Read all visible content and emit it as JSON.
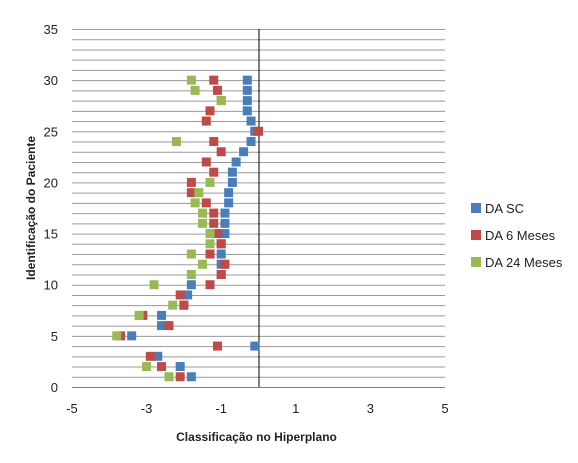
{
  "chart_data": {
    "type": "scatter",
    "xlabel": "Classificação no Hiperplano",
    "ylabel": "Identificação do Paciente",
    "xlim": [
      -5,
      5
    ],
    "ylim": [
      0,
      35
    ],
    "xticks": [
      "-5",
      "-3",
      "-1",
      "1",
      "3",
      "5"
    ],
    "yticks": [
      "0",
      "5",
      "10",
      "15",
      "20",
      "25",
      "30",
      "35"
    ],
    "grid": "horizontal",
    "legend_position": "right",
    "series": [
      {
        "name": "DA SC",
        "color": "#4a7ebb",
        "points": [
          [
            -1.8,
            1
          ],
          [
            -2.1,
            2
          ],
          [
            -2.7,
            3
          ],
          [
            -0.1,
            4
          ],
          [
            -3.4,
            5
          ],
          [
            -2.6,
            6
          ],
          [
            -2.6,
            7
          ],
          [
            -2.0,
            8
          ],
          [
            -1.9,
            9
          ],
          [
            -1.8,
            10
          ],
          [
            -1.0,
            11
          ],
          [
            -1.0,
            12
          ],
          [
            -1.0,
            13
          ],
          [
            -1.0,
            14
          ],
          [
            -0.9,
            15
          ],
          [
            -0.9,
            16
          ],
          [
            -0.9,
            17
          ],
          [
            -0.8,
            18
          ],
          [
            -0.8,
            19
          ],
          [
            -0.7,
            20
          ],
          [
            -0.7,
            21
          ],
          [
            -0.6,
            22
          ],
          [
            -0.4,
            23
          ],
          [
            -0.2,
            24
          ],
          [
            -0.1,
            25
          ],
          [
            -0.2,
            26
          ],
          [
            -0.3,
            27
          ],
          [
            -0.3,
            28
          ],
          [
            -0.3,
            29
          ],
          [
            -0.3,
            30
          ]
        ]
      },
      {
        "name": "DA 6 Meses",
        "color": "#be4b48",
        "points": [
          [
            -2.1,
            1
          ],
          [
            -2.6,
            2
          ],
          [
            -2.9,
            3
          ],
          [
            -1.1,
            4
          ],
          [
            -3.7,
            5
          ],
          [
            -2.4,
            6
          ],
          [
            -3.1,
            7
          ],
          [
            -2.0,
            8
          ],
          [
            -2.1,
            9
          ],
          [
            -1.3,
            10
          ],
          [
            -1.0,
            11
          ],
          [
            -0.9,
            12
          ],
          [
            -1.3,
            13
          ],
          [
            -1.0,
            14
          ],
          [
            -1.1,
            15
          ],
          [
            -1.2,
            16
          ],
          [
            -1.2,
            17
          ],
          [
            -1.4,
            18
          ],
          [
            -1.8,
            19
          ],
          [
            -1.8,
            20
          ],
          [
            -1.2,
            21
          ],
          [
            -1.4,
            22
          ],
          [
            -1.0,
            23
          ],
          [
            -1.2,
            24
          ],
          [
            0.0,
            25
          ],
          [
            -1.4,
            26
          ],
          [
            -1.3,
            27
          ],
          [
            -1.0,
            28
          ],
          [
            -1.1,
            29
          ],
          [
            -1.2,
            30
          ]
        ]
      },
      {
        "name": "DA 24 Meses",
        "color": "#98b954",
        "points": [
          [
            -2.4,
            1
          ],
          [
            -3.0,
            2
          ],
          [
            -3.8,
            5
          ],
          [
            -3.2,
            7
          ],
          [
            -2.3,
            8
          ],
          [
            -2.8,
            10
          ],
          [
            -1.8,
            11
          ],
          [
            -1.5,
            12
          ],
          [
            -1.8,
            13
          ],
          [
            -1.3,
            14
          ],
          [
            -1.3,
            15
          ],
          [
            -1.5,
            16
          ],
          [
            -1.5,
            17
          ],
          [
            -1.7,
            18
          ],
          [
            -1.6,
            19
          ],
          [
            -1.3,
            20
          ],
          [
            -2.2,
            24
          ],
          [
            -1.0,
            28
          ],
          [
            -1.7,
            29
          ],
          [
            -1.8,
            30
          ]
        ]
      }
    ]
  }
}
